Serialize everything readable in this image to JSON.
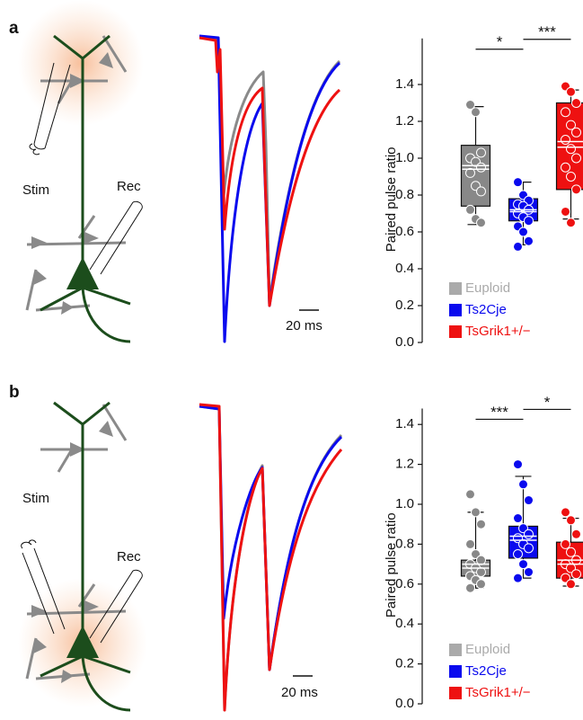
{
  "chart_data": [
    {
      "type": "box",
      "panel_label": "a",
      "stim_label": "Stim",
      "rec_label": "Rec",
      "scale_label": "20 ms",
      "ylabel": "Paired pulse ratio",
      "ylim": [
        0,
        1.65
      ],
      "yticks": [
        0.0,
        0.2,
        0.4,
        0.6,
        0.8,
        1.0,
        1.2,
        1.4
      ],
      "legend": "lower left",
      "annotations": [
        "*",
        "***"
      ],
      "series": [
        {
          "name": "Euploid",
          "color": "#888888",
          "legend_color": "#aaaaaa",
          "whisker_low": 0.64,
          "q1": 0.74,
          "median": 0.96,
          "mean": 0.94,
          "q3": 1.07,
          "whisker_high": 1.28,
          "points": [
            1.29,
            1.25,
            1.03,
            1.0,
            0.98,
            0.95,
            0.92,
            0.85,
            0.82,
            0.72,
            0.67,
            0.65
          ]
        },
        {
          "name": "Ts2Cje",
          "color": "#0a0aee",
          "legend_color": "#0a0aee",
          "whisker_low": 0.53,
          "q1": 0.66,
          "median": 0.72,
          "mean": 0.71,
          "q3": 0.78,
          "whisker_high": 0.87,
          "points": [
            0.87,
            0.8,
            0.77,
            0.75,
            0.74,
            0.72,
            0.7,
            0.68,
            0.66,
            0.63,
            0.6,
            0.55,
            0.52
          ]
        },
        {
          "name": "TsGrik1+/−",
          "color": "#ee1111",
          "legend_color": "#ee1111",
          "whisker_low": 0.67,
          "q1": 0.83,
          "median": 1.09,
          "mean": 1.06,
          "q3": 1.3,
          "whisker_high": 1.37,
          "points": [
            1.39,
            1.36,
            1.3,
            1.25,
            1.18,
            1.14,
            1.1,
            1.05,
            1.0,
            0.95,
            0.9,
            0.83,
            0.71,
            0.65
          ]
        }
      ]
    },
    {
      "type": "box",
      "panel_label": "b",
      "stim_label": "Stim",
      "rec_label": "Rec",
      "scale_label": "20 ms",
      "ylabel": "Paired pulse ratio",
      "ylim": [
        0,
        1.48
      ],
      "yticks": [
        0.0,
        0.2,
        0.4,
        0.6,
        0.8,
        1.0,
        1.2,
        1.4
      ],
      "legend": "lower left",
      "annotations": [
        "***",
        "*"
      ],
      "series": [
        {
          "name": "Euploid",
          "color": "#888888",
          "legend_color": "#aaaaaa",
          "whisker_low": 0.58,
          "q1": 0.64,
          "median": 0.68,
          "mean": 0.7,
          "q3": 0.72,
          "whisker_high": 0.96,
          "points": [
            1.05,
            0.96,
            0.9,
            0.8,
            0.75,
            0.72,
            0.7,
            0.68,
            0.66,
            0.64,
            0.62,
            0.6,
            0.58
          ]
        },
        {
          "name": "Ts2Cje",
          "color": "#0a0aee",
          "legend_color": "#0a0aee",
          "whisker_low": 0.63,
          "q1": 0.73,
          "median": 0.82,
          "mean": 0.84,
          "q3": 0.89,
          "whisker_high": 1.14,
          "points": [
            1.2,
            1.1,
            1.02,
            0.93,
            0.88,
            0.85,
            0.83,
            0.8,
            0.78,
            0.75,
            0.7,
            0.66,
            0.63
          ]
        },
        {
          "name": "TsGrik1+/−",
          "color": "#ee1111",
          "legend_color": "#ee1111",
          "whisker_low": 0.59,
          "q1": 0.63,
          "median": 0.72,
          "mean": 0.7,
          "q3": 0.81,
          "whisker_high": 0.93,
          "points": [
            0.96,
            0.92,
            0.85,
            0.8,
            0.76,
            0.72,
            0.7,
            0.68,
            0.65,
            0.63,
            0.6
          ]
        }
      ]
    }
  ]
}
